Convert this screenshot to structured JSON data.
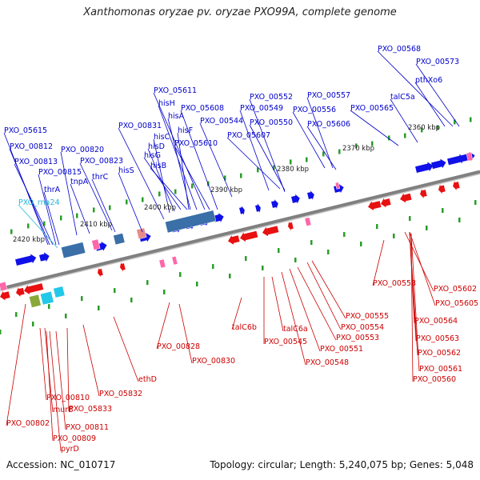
{
  "title": "Xanthomonas oryzae pv. oryzae PXO99A, complete genome",
  "accession": "Accession: NC_010717",
  "summary": "Topology: circular; Length: 5,240,075 bp; Genes: 5,048",
  "colors": {
    "plus_strand": "#1010e8",
    "minus_strand": "#e81010",
    "backbone": "#808080",
    "tick": "#2a9d2a",
    "rna": "#ff66aa",
    "operon_block": "#3a6fa8",
    "special_label": "#22b8d8"
  },
  "kbp_labels": [
    "2360 kbp",
    "2370 kbp",
    "2380 kbp",
    "2390 kbp",
    "2400 kbp",
    "2410 kbp",
    "2420 kbp"
  ],
  "top_labels": [
    "PXO_05615",
    "PXO_00812",
    "PXO_00813",
    "PXO_00815",
    "thrA",
    "PXO_rna24",
    "PXO_00820",
    "tnpA",
    "PXO_00823",
    "thrC",
    "hisS",
    "PXO_00831",
    "hisC",
    "hisD",
    "hisG",
    "hisB",
    "hisF",
    "hisA",
    "hisH",
    "PXO_05611",
    "PXO_05610",
    "PXO_05608",
    "PXO_00544",
    "PXO_00549",
    "PXO_00552",
    "PXO_00550",
    "PXO_05607",
    "PXO_00557",
    "PXO_00556",
    "PXO_05606",
    "PXO_00565",
    "talC5a",
    "PXO_00568",
    "PXO_00573",
    "pthXo6"
  ],
  "bottom_labels": [
    "PXO_00802",
    "PXO_00810",
    "murB",
    "PXO_00809",
    "pyrD",
    "PXO_00811",
    "PXO_05833",
    "PXO_05832",
    "ethD",
    "PXO_00828",
    "PXO_00830",
    "talC6b",
    "PXO_00545",
    "talC6a",
    "PXO_00548",
    "PXO_00551",
    "PXO_00553",
    "PXO_00554",
    "PXO_00555",
    "PXO_00558",
    "PXO_05602",
    "PXO_05605",
    "PXO_00564",
    "PXO_00563",
    "PXO_00562",
    "PXO_00561",
    "PXO_00560"
  ]
}
